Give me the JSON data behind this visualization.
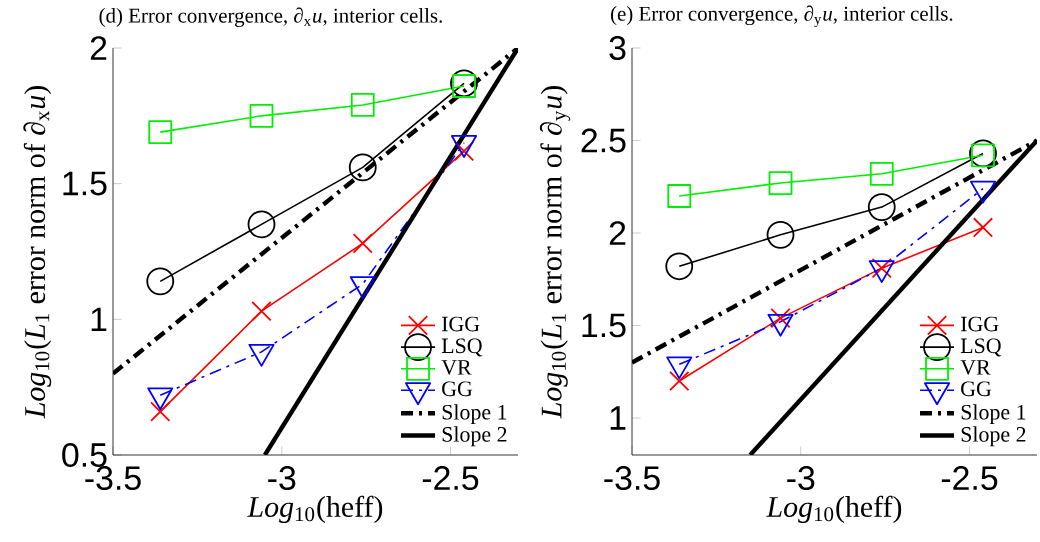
{
  "chart_data": [
    {
      "type": "line",
      "title": "(d) Error convergence, ∂$_{x}$*u*, interior cells.",
      "xlabel": "*Log*$_{10}$(heff)",
      "ylabel": "*Log*$_{10}$(*L*$_{1}$ error norm of ∂$_{x}$*u*)",
      "x": [
        -3.36,
        -3.06,
        -2.76,
        -2.46
      ],
      "xlim": [
        -3.5,
        -2.3
      ],
      "ylim": [
        0.5,
        2
      ],
      "xticks": [
        -3.5,
        -3,
        -2.5
      ],
      "yticks": [
        0.5,
        1,
        1.5,
        2
      ],
      "legend": "bottom right",
      "series": [
        {
          "name": "IGG",
          "color": "#ff0000",
          "marker": "cross",
          "line_style": "solid",
          "values": [
            0.66,
            1.03,
            1.28,
            1.62
          ]
        },
        {
          "name": "LSQ",
          "color": "#000000",
          "marker": "circle",
          "line_style": "solid",
          "values": [
            1.14,
            1.35,
            1.56,
            1.87
          ]
        },
        {
          "name": "VR",
          "color": "#00ee00",
          "marker": "square",
          "line_style": "solid",
          "values": [
            1.69,
            1.75,
            1.79,
            1.86
          ]
        },
        {
          "name": "GG",
          "color": "#0000ff",
          "marker": "triangle",
          "line_style": "dashdot",
          "values": [
            0.72,
            0.88,
            1.13,
            1.65
          ]
        },
        {
          "name": "Slope 1",
          "color": "#000000",
          "marker": "none",
          "line_style": "dashdot",
          "x": [
            -3.5,
            -2.3
          ],
          "values": [
            0.8,
            2.0
          ]
        },
        {
          "name": "Slope 2",
          "color": "#000000",
          "marker": "none",
          "line_style": "solid",
          "x": [
            -3.05,
            -2.3
          ],
          "values": [
            0.5,
            2.0
          ]
        }
      ]
    },
    {
      "type": "line",
      "title": "(e) Error convergence, ∂$_{y}$*u*, interior cells.",
      "xlabel": "*Log*$_{10}$(heff)",
      "ylabel": "*Log*$_{10}$(*L*$_{1}$ error norm of ∂$_{y}$*u*)",
      "x": [
        -3.36,
        -3.06,
        -2.76,
        -2.46
      ],
      "xlim": [
        -3.5,
        -2.3
      ],
      "ylim": [
        0.8,
        3
      ],
      "xticks": [
        -3.5,
        -3,
        -2.5
      ],
      "yticks": [
        1,
        1.5,
        2,
        2.5,
        3
      ],
      "legend": "bottom right",
      "series": [
        {
          "name": "IGG",
          "color": "#ff0000",
          "marker": "cross",
          "line_style": "solid",
          "values": [
            1.2,
            1.54,
            1.81,
            2.03
          ]
        },
        {
          "name": "LSQ",
          "color": "#000000",
          "marker": "circle",
          "line_style": "solid",
          "values": [
            1.82,
            1.99,
            2.14,
            2.43
          ]
        },
        {
          "name": "VR",
          "color": "#00ee00",
          "marker": "square",
          "line_style": "solid",
          "values": [
            2.2,
            2.27,
            2.32,
            2.42
          ]
        },
        {
          "name": "GG",
          "color": "#0000ff",
          "marker": "triangle",
          "line_style": "dashdot",
          "values": [
            1.29,
            1.52,
            1.81,
            2.24
          ]
        },
        {
          "name": "Slope 1",
          "color": "#000000",
          "marker": "none",
          "line_style": "dashdot",
          "x": [
            -3.5,
            -2.3
          ],
          "values": [
            1.3,
            2.5
          ]
        },
        {
          "name": "Slope 2",
          "color": "#000000",
          "marker": "none",
          "line_style": "solid",
          "x": [
            -3.15,
            -2.3
          ],
          "values": [
            0.8,
            2.5
          ]
        }
      ]
    }
  ]
}
